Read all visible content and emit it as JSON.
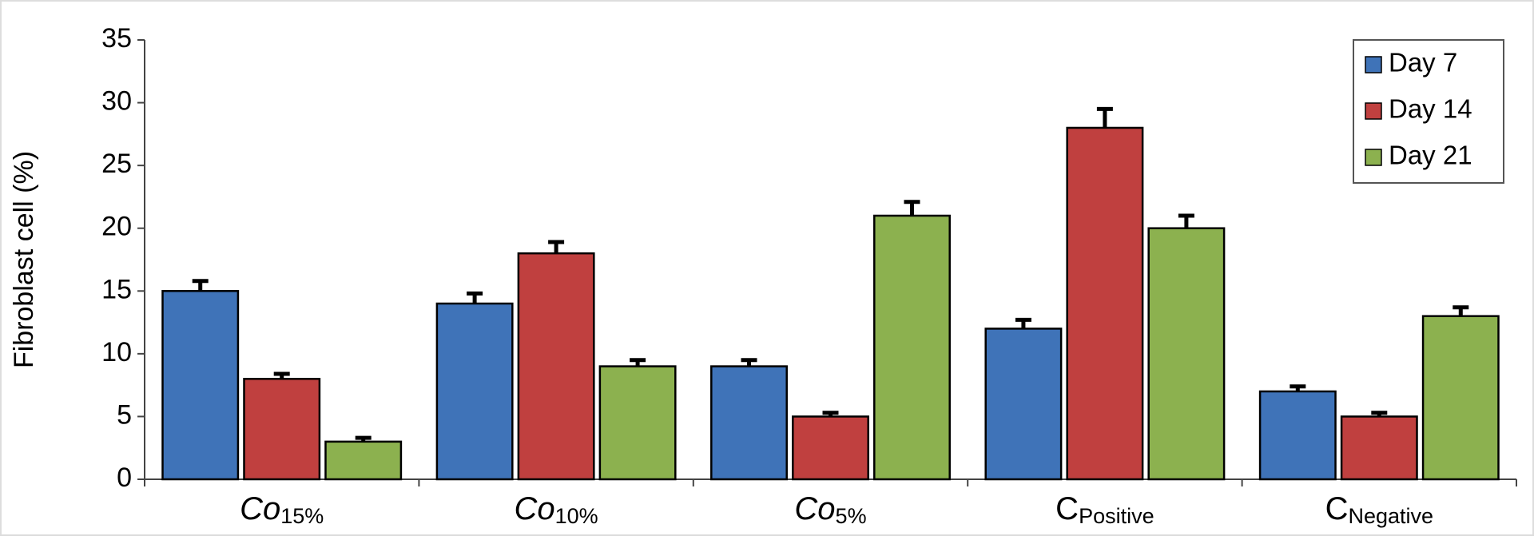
{
  "chart_data": {
    "type": "bar",
    "ylabel": "Fibroblast cell (%)",
    "categories": [
      "Co15%",
      "Co10%",
      "Co5%",
      "CPositive",
      "CNegative"
    ],
    "series": [
      {
        "name": "Day 7",
        "color": "#3f73b8",
        "values": [
          15,
          14,
          9,
          12,
          7
        ],
        "errors": [
          0.8,
          0.8,
          0.5,
          0.7,
          0.4
        ]
      },
      {
        "name": "Day 14",
        "color": "#c0403f",
        "values": [
          8,
          18,
          5,
          28,
          5
        ],
        "errors": [
          0.4,
          0.9,
          0.3,
          1.5,
          0.3
        ]
      },
      {
        "name": "Day 21",
        "color": "#8cb14f",
        "values": [
          3,
          9,
          21,
          20,
          13
        ],
        "errors": [
          0.3,
          0.5,
          1.1,
          1.0,
          0.7
        ]
      }
    ],
    "ylim": [
      0,
      35
    ],
    "yticks": [
      0,
      5,
      10,
      15,
      20,
      25,
      30,
      35
    ],
    "grid": false,
    "legend": "upper right"
  }
}
